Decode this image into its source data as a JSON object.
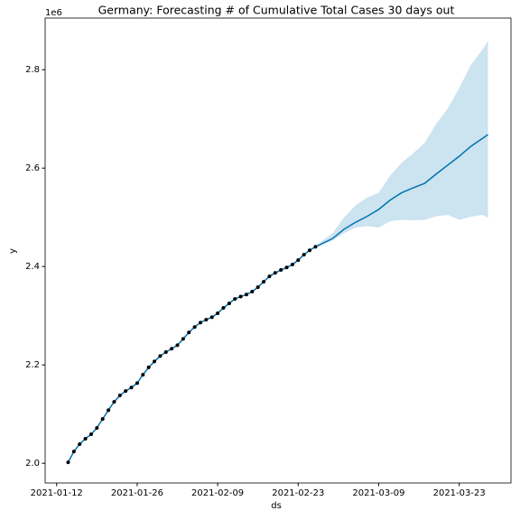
{
  "chart_data": {
    "type": "forecast",
    "title": "Germany: Forecasting # of Cumulative Total Cases 30 days out",
    "xlabel": "ds",
    "ylabel": "y",
    "y_offset_text": "1e6",
    "grid": true,
    "xlim": [
      "2021-01-10",
      "2021-04-01"
    ],
    "xticks": [
      "2021-01-12",
      "2021-01-26",
      "2021-02-09",
      "2021-02-23",
      "2021-03-09",
      "2021-03-23"
    ],
    "ylim": [
      1.96,
      2.905
    ],
    "yticks": [
      {
        "value": 2.0,
        "label": "2.0"
      },
      {
        "value": 2.2,
        "label": "2.2"
      },
      {
        "value": 2.4,
        "label": "2.4"
      },
      {
        "value": 2.6,
        "label": "2.6"
      },
      {
        "value": 2.8,
        "label": "2.8"
      }
    ],
    "actual": {
      "color": "#000000",
      "line_color": "#0072b2",
      "x": [
        "2021-01-14",
        "2021-01-15",
        "2021-01-16",
        "2021-01-17",
        "2021-01-18",
        "2021-01-19",
        "2021-01-20",
        "2021-01-21",
        "2021-01-22",
        "2021-01-23",
        "2021-01-24",
        "2021-01-25",
        "2021-01-26",
        "2021-01-27",
        "2021-01-28",
        "2021-01-29",
        "2021-01-30",
        "2021-01-31",
        "2021-02-01",
        "2021-02-02",
        "2021-02-03",
        "2021-02-04",
        "2021-02-05",
        "2021-02-06",
        "2021-02-07",
        "2021-02-08",
        "2021-02-09",
        "2021-02-10",
        "2021-02-11",
        "2021-02-12",
        "2021-02-13",
        "2021-02-14",
        "2021-02-15",
        "2021-02-16",
        "2021-02-17",
        "2021-02-18",
        "2021-02-19",
        "2021-02-20",
        "2021-02-21",
        "2021-02-22",
        "2021-02-23",
        "2021-02-24",
        "2021-02-25",
        "2021-02-26"
      ],
      "values": [
        2.002,
        2.024,
        2.039,
        2.05,
        2.059,
        2.072,
        2.09,
        2.108,
        2.125,
        2.138,
        2.147,
        2.154,
        2.163,
        2.18,
        2.195,
        2.207,
        2.218,
        2.226,
        2.233,
        2.24,
        2.253,
        2.266,
        2.277,
        2.286,
        2.292,
        2.297,
        2.305,
        2.316,
        2.325,
        2.334,
        2.339,
        2.343,
        2.349,
        2.358,
        2.369,
        2.38,
        2.387,
        2.393,
        2.398,
        2.404,
        2.413,
        2.424,
        2.433,
        2.44
      ]
    },
    "forecast": {
      "color": "#0072b2",
      "band_color": "#0072b2",
      "x": [
        "2021-02-26",
        "2021-03-01",
        "2021-03-03",
        "2021-03-05",
        "2021-03-07",
        "2021-03-09",
        "2021-03-11",
        "2021-03-13",
        "2021-03-15",
        "2021-03-17",
        "2021-03-19",
        "2021-03-21",
        "2021-03-23",
        "2021-03-25",
        "2021-03-27",
        "2021-03-28"
      ],
      "values": [
        2.44,
        2.457,
        2.476,
        2.49,
        2.502,
        2.516,
        2.535,
        2.55,
        2.56,
        2.569,
        2.588,
        2.606,
        2.624,
        2.644,
        2.66,
        2.668
      ],
      "upper": [
        2.442,
        2.468,
        2.5,
        2.525,
        2.54,
        2.55,
        2.585,
        2.611,
        2.63,
        2.651,
        2.69,
        2.721,
        2.763,
        2.809,
        2.84,
        2.859
      ],
      "lower": [
        2.438,
        2.453,
        2.468,
        2.479,
        2.482,
        2.479,
        2.492,
        2.495,
        2.494,
        2.495,
        2.502,
        2.505,
        2.495,
        2.501,
        2.505,
        2.499
      ]
    }
  }
}
